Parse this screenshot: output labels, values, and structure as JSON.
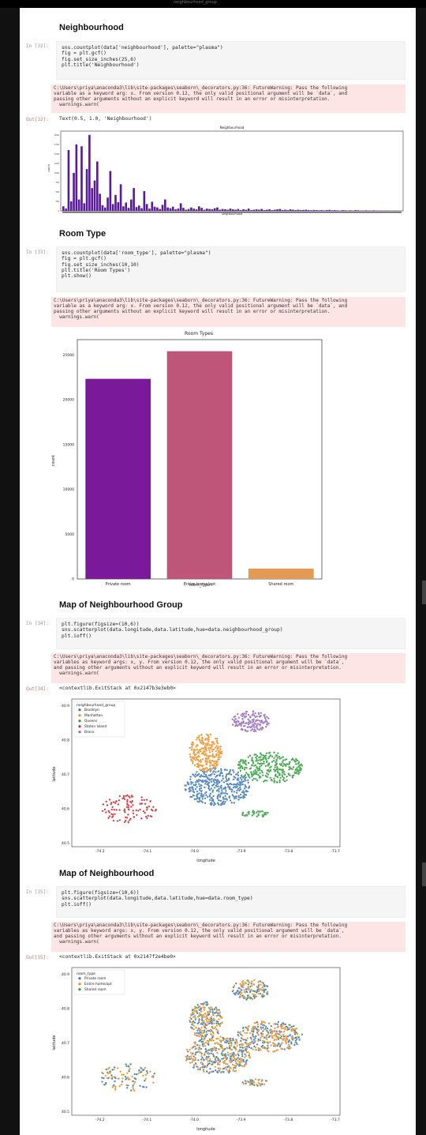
{
  "top": {
    "label": "neighbourhood_group"
  },
  "sections": {
    "neigh": {
      "heading": "Neighbourhood",
      "prompt_in": "In [32]:",
      "code": [
        "sns.countplot(data['neighbourhood'], palette=\"plasma\")",
        "fig = plt.gcf()",
        "fig.set_size_inches(25,6)",
        "plt.title('Neighbourhood')"
      ],
      "warning": [
        "C:\\Users\\priya\\anaconda3\\lib\\site-packages\\seaborn\\_decorators.py:36: FutureWarning: Pass the following",
        "variable as a keyword arg: x. From version 0.12, the only valid positional argument will be `data`, and",
        "passing other arguments without an explicit keyword will result in an error or misinterpretation.",
        "  warnings.warn("
      ],
      "prompt_out": "Out[32]:",
      "output": "Text(0.5, 1.0, 'Neighbourhood')"
    },
    "room": {
      "heading": "Room Type",
      "prompt_in": "In [33]:",
      "code": [
        "sns.countplot(data['room_type'], palette=\"plasma\")",
        "fig = plt.gcf()",
        "fig.set_size_inches(10,10)",
        "plt.title('Room Types')",
        "plt.show()"
      ],
      "warning": [
        "C:\\Users\\priya\\anaconda3\\lib\\site-packages\\seaborn\\_decorators.py:36: FutureWarning: Pass the following",
        "variable as a keyword arg: x. From version 0.12, the only valid positional argument will be `data`, and",
        "passing other arguments without an explicit keyword will result in an error or misinterpretation.",
        "  warnings.warn("
      ]
    },
    "group": {
      "heading": "Map of Neighbourhood Group",
      "prompt_in": "In [34]:",
      "code": [
        "plt.figure(figsize=(10,6))",
        "sns.scatterplot(data.longitude,data.latitude,hue=data.neighbourhood_group)",
        "plt.ioff()"
      ],
      "warning": [
        "C:\\Users\\priya\\anaconda3\\lib\\site-packages\\seaborn\\_decorators.py:36: FutureWarning: Pass the following",
        "variables as keyword args: x, y. From version 0.12, the only valid positional argument will be `data`,",
        "and passing other arguments without an explicit keyword will result in an error or misinterpretation.",
        "  warnings.warn("
      ],
      "prompt_out": "Out[34]:",
      "output": "<contextlib.ExitStack at 0x2147b3e3eb0>"
    },
    "map2": {
      "heading": "Map of Neighbourhood",
      "prompt_in": "In [35]:",
      "code": [
        "plt.figure(figsize=(10,6))",
        "sns.scatterplot(data.longitude,data.latitude,hue=data.room_type)",
        "plt.ioff()"
      ],
      "warning": [
        "C:\\Users\\priya\\anaconda3\\lib\\site-packages\\seaborn\\_decorators.py:36: FutureWarning: Pass the following",
        "variables as keyword args: x, y. From version 0.12, the only valid positional argument will be `data`,",
        "and passing other arguments without an explicit keyword will result in an error or misinterpretation.",
        "  warnings.warn("
      ],
      "prompt_out": "Out[35]:",
      "output": "<contextlib.ExitStack at 0x2147f2e4be0>"
    }
  },
  "colors": {
    "purple_bar": "#7a1a9a",
    "pink_bar": "#bd5679",
    "orange_bar": "#e29a55",
    "warning_bg": "#fde5e5",
    "code_bg": "#f5f5f5"
  },
  "chart_data": [
    {
      "id": "neighbourhood",
      "type": "bar",
      "title": "Neighbourhood",
      "xlabel": "neighbourhood",
      "ylabel": "count",
      "yticks": [
        "0",
        "250",
        "500",
        "750",
        "1000",
        "1250",
        "1500",
        "1750",
        "2000"
      ],
      "ylim": [
        0,
        2100
      ],
      "bar_color": "#5a1a9a",
      "values": [
        120,
        60,
        1600,
        250,
        1000,
        1750,
        300,
        1700,
        200,
        1100,
        2000,
        600,
        800,
        1300,
        450,
        150,
        90,
        350,
        1050,
        180,
        420,
        230,
        700,
        120,
        220,
        80,
        300,
        600,
        100,
        140,
        70,
        520,
        180,
        60,
        240,
        110,
        90,
        50,
        160,
        300,
        90,
        70,
        110,
        40,
        60,
        200,
        80,
        30,
        50,
        90,
        60,
        40,
        120,
        80,
        30,
        60,
        50,
        40,
        70,
        90,
        30,
        50,
        40,
        30,
        60,
        40,
        30,
        50,
        20,
        40,
        30,
        60,
        20,
        30,
        40,
        30,
        50,
        20,
        30,
        40,
        20,
        30,
        40,
        50,
        20,
        30,
        20,
        40,
        30,
        20,
        30,
        20,
        25,
        30,
        20,
        15,
        25,
        20,
        15,
        20,
        15,
        20,
        25,
        15,
        20,
        15,
        10,
        20,
        15,
        10,
        15,
        10,
        20,
        15,
        10,
        10,
        15,
        10,
        10,
        15,
        10,
        8,
        10,
        8,
        10,
        8,
        6,
        8,
        6,
        5
      ]
    },
    {
      "id": "room_types",
      "type": "bar",
      "title": "Room Types",
      "xlabel": "room_type",
      "ylabel": "count",
      "categories": [
        "Private room",
        "Entire home/apt",
        "Shared room"
      ],
      "values": [
        22326,
        25409,
        1160
      ],
      "colors": [
        "#7a1a9a",
        "#bd5679",
        "#e29a55"
      ],
      "yticks": [
        0,
        5000,
        10000,
        15000,
        20000,
        25000
      ],
      "ylim": [
        0,
        26700
      ]
    },
    {
      "id": "neighbourhood_group_map",
      "type": "scatter",
      "xlabel": "longitude",
      "ylabel": "latitude",
      "xticks": [
        "-74.2",
        "-74.1",
        "-74.0",
        "-73.9",
        "-73.8",
        "-73.7"
      ],
      "yticks": [
        "40.9",
        "40.8",
        "40.7",
        "40.6",
        "40.5"
      ],
      "xlim": [
        -74.26,
        -73.69
      ],
      "ylim": [
        40.49,
        40.92
      ],
      "legend_title": "neighbourhood_group",
      "legend_placement": "top-left",
      "series": [
        {
          "name": "Brooklyn",
          "color": "#3b77b4"
        },
        {
          "name": "Manhattan",
          "color": "#f28c1e"
        },
        {
          "name": "Queens",
          "color": "#2e9e3a"
        },
        {
          "name": "Staten Island",
          "color": "#d22a2a"
        },
        {
          "name": "Bronx",
          "color": "#9467bd"
        }
      ]
    },
    {
      "id": "room_type_map",
      "type": "scatter",
      "xlabel": "longitude",
      "ylabel": "latitude",
      "xticks": [
        "-74.2",
        "-74.1",
        "-74.0",
        "-73.9",
        "-73.8",
        "-73.7"
      ],
      "yticks": [
        "40.9",
        "40.8",
        "40.7",
        "40.6",
        "40.5"
      ],
      "xlim": [
        -74.26,
        -73.69
      ],
      "ylim": [
        40.49,
        40.92
      ],
      "legend_title": "room_type",
      "legend_placement": "top-left",
      "series": [
        {
          "name": "Private room",
          "color": "#3b77b4"
        },
        {
          "name": "Entire home/apt",
          "color": "#f28c1e"
        },
        {
          "name": "Shared room",
          "color": "#2e9e3a"
        }
      ]
    }
  ]
}
